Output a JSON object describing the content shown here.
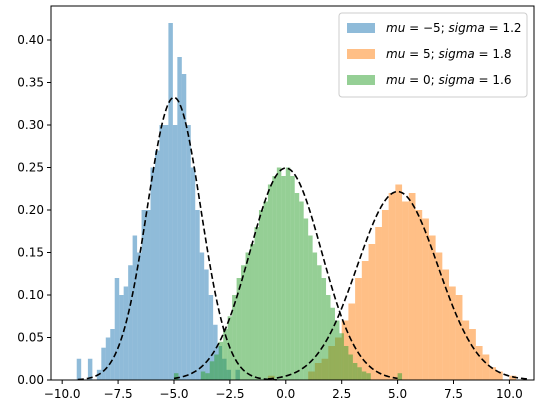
{
  "chart_data": {
    "type": "histogram",
    "xlim": [
      -10.5,
      11.1
    ],
    "ylim": [
      0,
      0.44
    ],
    "x_ticks": [
      -10.0,
      -7.5,
      -5.0,
      -2.5,
      0.0,
      2.5,
      5.0,
      7.5,
      10.0
    ],
    "x_tick_labels": [
      "−10.0",
      "−7.5",
      "−5.0",
      "−2.5",
      "0.0",
      "2.5",
      "5.0",
      "7.5",
      "10.0"
    ],
    "y_ticks": [
      0.0,
      0.05,
      0.1,
      0.15,
      0.2,
      0.25,
      0.3,
      0.35,
      0.4
    ],
    "y_tick_labels": [
      "0.00",
      "0.05",
      "0.10",
      "0.15",
      "0.20",
      "0.25",
      "0.30",
      "0.35",
      "0.40"
    ],
    "grid": false,
    "legend_position": "top-right",
    "series": [
      {
        "mu": -5,
        "sigma": 1.2,
        "color": "#1f77b4",
        "alpha": 0.5,
        "legend_math": {
          "lhs1": "mu",
          "val1": "−5",
          "lhs2": "sigma",
          "val2": "1.2"
        },
        "bins": [
          {
            "x0": -9.35,
            "x1": -9.15,
            "h": 0.025
          },
          {
            "x0": -8.85,
            "x1": -8.65,
            "h": 0.025
          },
          {
            "x0": -8.45,
            "x1": -8.25,
            "h": 0.012
          },
          {
            "x0": -8.25,
            "x1": -8.05,
            "h": 0.038
          },
          {
            "x0": -8.05,
            "x1": -7.85,
            "h": 0.05
          },
          {
            "x0": -7.85,
            "x1": -7.65,
            "h": 0.06
          },
          {
            "x0": -7.65,
            "x1": -7.45,
            "h": 0.12
          },
          {
            "x0": -7.45,
            "x1": -7.25,
            "h": 0.1
          },
          {
            "x0": -7.25,
            "x1": -7.05,
            "h": 0.11
          },
          {
            "x0": -7.05,
            "x1": -6.85,
            "h": 0.135
          },
          {
            "x0": -6.85,
            "x1": -6.65,
            "h": 0.17
          },
          {
            "x0": -6.65,
            "x1": -6.45,
            "h": 0.15
          },
          {
            "x0": -6.45,
            "x1": -6.25,
            "h": 0.2
          },
          {
            "x0": -6.25,
            "x1": -6.05,
            "h": 0.2
          },
          {
            "x0": -6.05,
            "x1": -5.85,
            "h": 0.25
          },
          {
            "x0": -5.85,
            "x1": -5.65,
            "h": 0.27
          },
          {
            "x0": -5.65,
            "x1": -5.45,
            "h": 0.3
          },
          {
            "x0": -5.45,
            "x1": -5.25,
            "h": 0.3
          },
          {
            "x0": -5.25,
            "x1": -5.05,
            "h": 0.42
          },
          {
            "x0": -5.05,
            "x1": -4.85,
            "h": 0.3
          },
          {
            "x0": -4.85,
            "x1": -4.65,
            "h": 0.38
          },
          {
            "x0": -4.65,
            "x1": -4.45,
            "h": 0.36
          },
          {
            "x0": -4.45,
            "x1": -4.25,
            "h": 0.3
          },
          {
            "x0": -4.25,
            "x1": -4.05,
            "h": 0.25
          },
          {
            "x0": -4.05,
            "x1": -3.85,
            "h": 0.2
          },
          {
            "x0": -3.85,
            "x1": -3.65,
            "h": 0.15
          },
          {
            "x0": -3.65,
            "x1": -3.45,
            "h": 0.13
          },
          {
            "x0": -3.45,
            "x1": -3.25,
            "h": 0.1
          },
          {
            "x0": -3.25,
            "x1": -3.05,
            "h": 0.065
          },
          {
            "x0": -3.05,
            "x1": -2.85,
            "h": 0.04
          },
          {
            "x0": -2.85,
            "x1": -2.65,
            "h": 0.025
          },
          {
            "x0": -2.65,
            "x1": -2.45,
            "h": 0.012
          },
          {
            "x0": -2.25,
            "x1": -2.05,
            "h": 0.012
          }
        ]
      },
      {
        "mu": 5,
        "sigma": 1.8,
        "color": "#ff7f0e",
        "alpha": 0.5,
        "legend_math": {
          "lhs1": "mu",
          "val1": "5",
          "lhs2": "sigma",
          "val2": "1.8"
        },
        "bins": [
          {
            "x0": -0.8,
            "x1": -0.5,
            "h": 0.005
          },
          {
            "x0": 1.0,
            "x1": 1.3,
            "h": 0.01
          },
          {
            "x0": 1.3,
            "x1": 1.6,
            "h": 0.02
          },
          {
            "x0": 1.6,
            "x1": 1.9,
            "h": 0.025
          },
          {
            "x0": 1.9,
            "x1": 2.2,
            "h": 0.04
          },
          {
            "x0": 2.2,
            "x1": 2.5,
            "h": 0.05
          },
          {
            "x0": 2.5,
            "x1": 2.8,
            "h": 0.07
          },
          {
            "x0": 2.8,
            "x1": 3.1,
            "h": 0.09
          },
          {
            "x0": 3.1,
            "x1": 3.4,
            "h": 0.12
          },
          {
            "x0": 3.4,
            "x1": 3.7,
            "h": 0.14
          },
          {
            "x0": 3.7,
            "x1": 4.0,
            "h": 0.16
          },
          {
            "x0": 4.0,
            "x1": 4.3,
            "h": 0.18
          },
          {
            "x0": 4.3,
            "x1": 4.6,
            "h": 0.2
          },
          {
            "x0": 4.6,
            "x1": 4.9,
            "h": 0.22
          },
          {
            "x0": 4.9,
            "x1": 5.2,
            "h": 0.23
          },
          {
            "x0": 5.2,
            "x1": 5.5,
            "h": 0.21
          },
          {
            "x0": 5.5,
            "x1": 5.8,
            "h": 0.22
          },
          {
            "x0": 5.8,
            "x1": 6.1,
            "h": 0.2
          },
          {
            "x0": 6.1,
            "x1": 6.4,
            "h": 0.19
          },
          {
            "x0": 6.4,
            "x1": 6.7,
            "h": 0.17
          },
          {
            "x0": 6.7,
            "x1": 7.0,
            "h": 0.15
          },
          {
            "x0": 7.0,
            "x1": 7.3,
            "h": 0.13
          },
          {
            "x0": 7.3,
            "x1": 7.6,
            "h": 0.11
          },
          {
            "x0": 7.6,
            "x1": 7.9,
            "h": 0.1
          },
          {
            "x0": 7.9,
            "x1": 8.2,
            "h": 0.07
          },
          {
            "x0": 8.2,
            "x1": 8.5,
            "h": 0.06
          },
          {
            "x0": 8.5,
            "x1": 8.8,
            "h": 0.04
          },
          {
            "x0": 8.8,
            "x1": 9.1,
            "h": 0.03
          },
          {
            "x0": 9.1,
            "x1": 9.4,
            "h": 0.015
          },
          {
            "x0": 9.4,
            "x1": 9.7,
            "h": 0.01
          },
          {
            "x0": 10.0,
            "x1": 10.3,
            "h": 0.005
          }
        ]
      },
      {
        "mu": 0,
        "sigma": 1.6,
        "color": "#2ca02c",
        "alpha": 0.5,
        "legend_math": {
          "lhs1": "mu",
          "val1": "0",
          "lhs2": "sigma",
          "val2": "1.6"
        },
        "bins": [
          {
            "x0": -5.0,
            "x1": -4.8,
            "h": 0.008
          },
          {
            "x0": -3.8,
            "x1": -3.6,
            "h": 0.01
          },
          {
            "x0": -3.6,
            "x1": -3.4,
            "h": 0.008
          },
          {
            "x0": -3.4,
            "x1": -3.2,
            "h": 0.022
          },
          {
            "x0": -3.2,
            "x1": -3.0,
            "h": 0.03
          },
          {
            "x0": -3.0,
            "x1": -2.8,
            "h": 0.045
          },
          {
            "x0": -2.8,
            "x1": -2.6,
            "h": 0.06
          },
          {
            "x0": -2.6,
            "x1": -2.4,
            "h": 0.075
          },
          {
            "x0": -2.4,
            "x1": -2.2,
            "h": 0.1
          },
          {
            "x0": -2.2,
            "x1": -2.0,
            "h": 0.12
          },
          {
            "x0": -2.0,
            "x1": -1.8,
            "h": 0.135
          },
          {
            "x0": -1.8,
            "x1": -1.6,
            "h": 0.15
          },
          {
            "x0": -1.6,
            "x1": -1.4,
            "h": 0.16
          },
          {
            "x0": -1.4,
            "x1": -1.2,
            "h": 0.18
          },
          {
            "x0": -1.2,
            "x1": -1.0,
            "h": 0.2
          },
          {
            "x0": -1.0,
            "x1": -0.8,
            "h": 0.21
          },
          {
            "x0": -0.8,
            "x1": -0.6,
            "h": 0.23
          },
          {
            "x0": -0.6,
            "x1": -0.4,
            "h": 0.24
          },
          {
            "x0": -0.4,
            "x1": -0.2,
            "h": 0.25
          },
          {
            "x0": -0.2,
            "x1": 0.0,
            "h": 0.24
          },
          {
            "x0": 0.0,
            "x1": 0.2,
            "h": 0.25
          },
          {
            "x0": 0.2,
            "x1": 0.4,
            "h": 0.24
          },
          {
            "x0": 0.4,
            "x1": 0.6,
            "h": 0.22
          },
          {
            "x0": 0.6,
            "x1": 0.8,
            "h": 0.21
          },
          {
            "x0": 0.8,
            "x1": 1.0,
            "h": 0.19
          },
          {
            "x0": 1.0,
            "x1": 1.2,
            "h": 0.17
          },
          {
            "x0": 1.2,
            "x1": 1.4,
            "h": 0.15
          },
          {
            "x0": 1.4,
            "x1": 1.6,
            "h": 0.135
          },
          {
            "x0": 1.6,
            "x1": 1.8,
            "h": 0.12
          },
          {
            "x0": 1.8,
            "x1": 2.0,
            "h": 0.1
          },
          {
            "x0": 2.0,
            "x1": 2.2,
            "h": 0.085
          },
          {
            "x0": 2.2,
            "x1": 2.4,
            "h": 0.07
          },
          {
            "x0": 2.4,
            "x1": 2.6,
            "h": 0.055
          },
          {
            "x0": 2.6,
            "x1": 2.8,
            "h": 0.04
          },
          {
            "x0": 2.8,
            "x1": 3.0,
            "h": 0.03
          },
          {
            "x0": 3.0,
            "x1": 3.2,
            "h": 0.02
          },
          {
            "x0": 3.2,
            "x1": 3.4,
            "h": 0.015
          },
          {
            "x0": 3.4,
            "x1": 3.6,
            "h": 0.01
          },
          {
            "x0": 3.6,
            "x1": 3.8,
            "h": 0.008
          },
          {
            "x0": 5.0,
            "x1": 5.2,
            "h": 0.008
          }
        ]
      }
    ],
    "pdf_curves": [
      {
        "mu": -5,
        "sigma": 1.2,
        "x_range": [
          -9.3,
          -0.4
        ]
      },
      {
        "mu": 5,
        "sigma": 1.8,
        "x_range": [
          -0.8,
          10.8
        ]
      },
      {
        "mu": 0,
        "sigma": 1.6,
        "x_range": [
          -5.0,
          5.0
        ]
      }
    ]
  }
}
